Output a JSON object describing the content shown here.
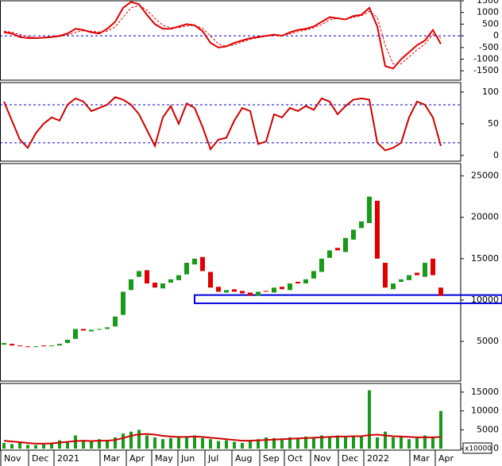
{
  "chart_data": [
    {
      "type": "line",
      "ylim": [
        -1900,
        1500
      ],
      "yticks": [
        -1500,
        -1000,
        -500,
        0,
        500,
        1000,
        1500
      ],
      "ref_lines": [
        0
      ],
      "series": [
        {
          "color": "#e00000",
          "values": [
            150,
            100,
            -50,
            -100,
            -100,
            -80,
            -50,
            0,
            100,
            300,
            250,
            150,
            100,
            300,
            600,
            1200,
            1450,
            1350,
            900,
            500,
            300,
            300,
            400,
            500,
            450,
            200,
            -300,
            -500,
            -450,
            -300,
            -200,
            -100,
            -50,
            0,
            50,
            0,
            150,
            250,
            300,
            400,
            600,
            800,
            750,
            700,
            850,
            900,
            1200,
            400,
            -1300,
            -1400,
            -1000,
            -700,
            -400,
            -200,
            250,
            -350
          ]
        },
        {
          "color": "#e00000",
          "dashed": true,
          "values": [
            200,
            150,
            50,
            -30,
            -80,
            -90,
            -70,
            -30,
            40,
            150,
            220,
            200,
            160,
            200,
            380,
            800,
            1200,
            1300,
            1100,
            750,
            450,
            350,
            350,
            420,
            450,
            320,
            0,
            -350,
            -450,
            -380,
            -260,
            -150,
            -80,
            -20,
            20,
            20,
            80,
            180,
            250,
            340,
            480,
            680,
            750,
            720,
            790,
            860,
            1050,
            800,
            -400,
            -1200,
            -1200,
            -900,
            -600,
            -350,
            50,
            -100
          ]
        }
      ]
    },
    {
      "type": "line",
      "ylim": [
        -9,
        115
      ],
      "yticks": [
        0,
        50,
        100
      ],
      "ref_lines": [
        20,
        80
      ],
      "series": [
        {
          "color": "#d00000",
          "values": [
            85,
            55,
            25,
            12,
            35,
            50,
            60,
            55,
            80,
            90,
            85,
            70,
            75,
            80,
            92,
            88,
            80,
            65,
            40,
            15,
            60,
            78,
            50,
            82,
            75,
            45,
            10,
            25,
            28,
            55,
            75,
            70,
            18,
            22,
            65,
            60,
            75,
            70,
            78,
            72,
            90,
            85,
            65,
            78,
            88,
            90,
            88,
            20,
            8,
            12,
            20,
            60,
            85,
            80,
            60,
            15
          ]
        }
      ]
    },
    {
      "type": "candlestick",
      "ylim": [
        200,
        26500
      ],
      "yticks": [
        5000,
        10000,
        15000,
        20000,
        25000
      ],
      "zone": [
        9600,
        10600
      ],
      "up_color": "#1a9a1a",
      "down_color": "#e00000",
      "open": [
        4600,
        4700,
        4500,
        4400,
        4300,
        4500,
        4400,
        4500,
        4800,
        5300,
        6500,
        6200,
        6400,
        6500,
        6800,
        8200,
        11200,
        12800,
        13600,
        12100,
        11400,
        12100,
        12400,
        13100,
        14300,
        15200,
        13400,
        11600,
        10900,
        11300,
        11100,
        10900,
        10500,
        11100,
        10900,
        11600,
        11200,
        12200,
        12000,
        12600,
        13400,
        15100,
        16300,
        15800,
        17300,
        18700,
        19300,
        22000,
        14500,
        11300,
        12200,
        12400,
        13300,
        12800,
        15000,
        11500
      ],
      "close": [
        4800,
        4500,
        4400,
        4300,
        4400,
        4400,
        4500,
        4700,
        5200,
        6500,
        6300,
        6400,
        6500,
        6700,
        8000,
        11000,
        12500,
        13500,
        12000,
        11500,
        12000,
        12500,
        13000,
        14500,
        15000,
        13500,
        11500,
        11000,
        11200,
        11000,
        10800,
        10500,
        11000,
        11000,
        11500,
        11300,
        12000,
        12000,
        12500,
        13500,
        15000,
        16000,
        16000,
        17500,
        18500,
        19500,
        22500,
        15000,
        11500,
        12000,
        12500,
        13000,
        13000,
        14500,
        13000,
        10500
      ]
    },
    {
      "type": "bar",
      "ylim": [
        -400,
        17300
      ],
      "yticks": [
        0,
        5000,
        10000,
        15000
      ],
      "unit_label": "x10000",
      "color": "#1a9a1a",
      "values": [
        1500,
        1200,
        1800,
        1000,
        900,
        1100,
        1500,
        2200,
        1800,
        3500,
        2200,
        1800,
        2500,
        2000,
        3000,
        4000,
        4500,
        5000,
        3500,
        3000,
        2500,
        2800,
        3200,
        3000,
        3500,
        2800,
        2500,
        2000,
        2200,
        1800,
        1500,
        2000,
        2500,
        3000,
        2800,
        2500,
        3000,
        2800,
        3200,
        3000,
        3500,
        3000,
        3500,
        3000,
        3500,
        3200,
        15500,
        3000,
        4500,
        3000,
        3200,
        2500,
        2800,
        3500,
        3000,
        10000
      ],
      "average": {
        "color": "#d00000",
        "values": [
          2100,
          1900,
          1700,
          1500,
          1300,
          1300,
          1400,
          1600,
          1800,
          2000,
          2100,
          2000,
          2100,
          2100,
          2300,
          2800,
          3400,
          3800,
          3900,
          3700,
          3400,
          3200,
          3100,
          3100,
          3200,
          3100,
          2900,
          2700,
          2500,
          2300,
          2100,
          2100,
          2200,
          2300,
          2400,
          2500,
          2600,
          2700,
          2800,
          2900,
          3000,
          3100,
          3200,
          3200,
          3300,
          3300,
          3600,
          3700,
          3500,
          3300,
          3200,
          3100,
          3000,
          3000,
          3000,
          3100
        ]
      },
      "x_labels": [
        "Nov",
        "Dec",
        "2021",
        "Mar",
        "Apr",
        "May",
        "Jun",
        "Jul",
        "Aug",
        "Sep",
        "Oct",
        "Nov",
        "Dec",
        "2022",
        "Mar",
        "Apr"
      ]
    }
  ]
}
